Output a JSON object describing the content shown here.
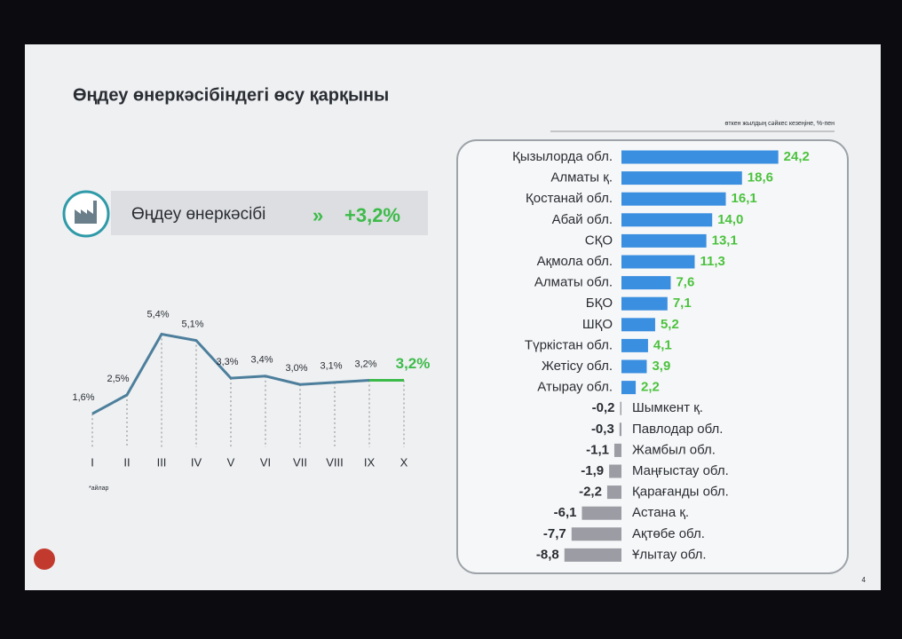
{
  "slide": {
    "title": "Өңдеу өнеркәсібіндегі өсу қарқыны",
    "kpi_label": "Өңдеу өнеркәсібі",
    "kpi": {
      "value": 3.2,
      "label": "+3,2%"
    },
    "footnote": "*айлар",
    "page": "4"
  },
  "chart_data": [
    {
      "type": "line",
      "categories": [
        "I",
        "II",
        "III",
        "IV",
        "V",
        "VI",
        "VII",
        "VIII",
        "IX",
        "X"
      ],
      "values": [
        1.6,
        2.5,
        5.4,
        5.1,
        3.3,
        3.4,
        3.0,
        3.1,
        3.2,
        3.2
      ],
      "value_labels": [
        "1,6%",
        "2,5%",
        "5,4%",
        "5,1%",
        "3,3%",
        "3,4%",
        "3,0%",
        "3,1%",
        "3,2%",
        "3,2%"
      ],
      "color": "#4d7f9c",
      "highlight_color": "#3dbb4a"
    },
    {
      "type": "bar",
      "subtitle": "өткен жылдың сәйкес кезеңіне, %-пен",
      "categories": [
        "Қызылорда обл.",
        "Алматы қ.",
        "Қостанай обл.",
        "Абай обл.",
        "СҚО",
        "Ақмола обл.",
        "Алматы обл.",
        "БҚО",
        "ШҚО",
        "Түркістан обл.",
        "Жетісу обл.",
        "Атырау обл.",
        "Шымкент қ.",
        "Павлодар обл.",
        "Жамбыл обл.",
        "Маңғыстау обл.",
        "Қарағанды обл.",
        "Астана қ.",
        "Ақтөбе обл.",
        "Ұлытау обл."
      ],
      "values": [
        24.2,
        18.6,
        16.1,
        14.0,
        13.1,
        11.3,
        7.6,
        7.1,
        5.2,
        4.1,
        3.9,
        2.2,
        -0.2,
        -0.3,
        -1.1,
        -1.9,
        -2.2,
        -6.1,
        -7.7,
        -8.8
      ],
      "value_labels": [
        "24,2",
        "18,6",
        "16,1",
        "14,0",
        "13,1",
        "11,3",
        "7,6",
        "7,1",
        "5,2",
        "4,1",
        "3,9",
        "2,2",
        "-0,2",
        "-0,3",
        "-1,1",
        "-1,9",
        "-2,2",
        "-6,1",
        "-7,7",
        "-8,8"
      ],
      "color": "#3b8fe0",
      "negative_color": "#9b9ca4",
      "label_color": "#4cc23f"
    }
  ]
}
